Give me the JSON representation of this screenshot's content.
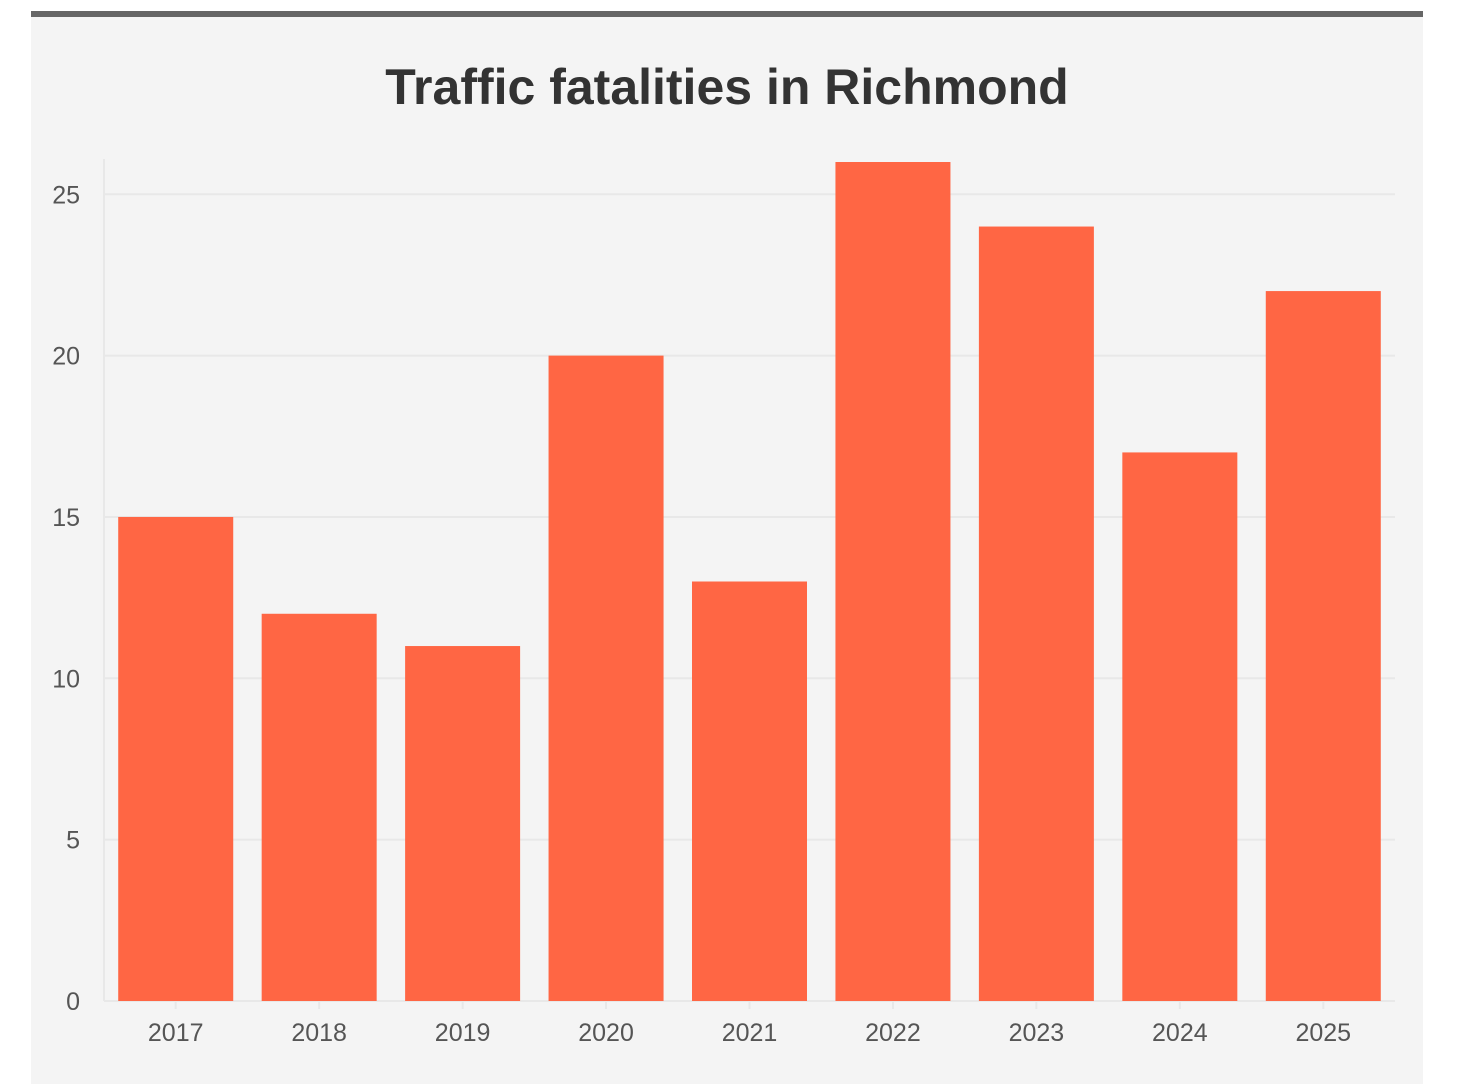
{
  "chart_data": {
    "type": "bar",
    "title": "Traffic fatalities in Richmond",
    "xlabel": "",
    "ylabel": "",
    "categories": [
      "2017",
      "2018",
      "2019",
      "2020",
      "2021",
      "2022",
      "2023",
      "2024",
      "2025"
    ],
    "values": [
      15,
      12,
      11,
      20,
      13,
      26,
      24,
      17,
      22
    ],
    "y_ticks": [
      "0",
      "5",
      "10",
      "15",
      "20",
      "25"
    ],
    "ylim": [
      0,
      26
    ],
    "grid": true,
    "legend": "none",
    "colors": {
      "bar": "#ff6644",
      "background": "#f4f4f4",
      "gridline": "#e8e8e8",
      "title": "#333333",
      "tick_text": "#555555",
      "top_rule": "#666666"
    }
  }
}
